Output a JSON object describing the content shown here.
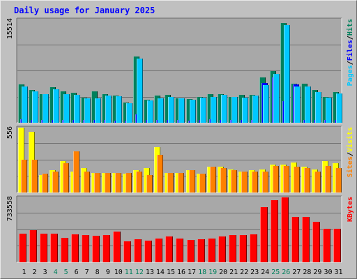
{
  "title": "Daily usage for January 2025",
  "colors": {
    "hits": "#00805c",
    "files": "#0000ff",
    "pages": "#00c8ff",
    "visits": "#ffff00",
    "sites": "#ff8000",
    "kbytes": "#ff0000",
    "weekend_label": "#00805c",
    "weekday_label": "#000000",
    "frame_bg": "#c0c0c0",
    "plot_bg": "#a8a8a8",
    "grid": "#707070"
  },
  "chart_data": [
    {
      "type": "bar",
      "panel": "top",
      "ymax_label": "15514",
      "ylim": [
        0,
        15514
      ],
      "grid": true,
      "legend_placement": "right",
      "legend": [
        "Pages",
        "Files",
        "Hits"
      ],
      "legend_separator": "/",
      "series": [
        {
          "name": "Hits",
          "values": [
            5770,
            4880,
            4340,
            5300,
            4670,
            4530,
            3750,
            4670,
            4260,
            4130,
            3030,
            9950,
            3450,
            4140,
            4170,
            3650,
            3610,
            3880,
            4340,
            4350,
            3920,
            4230,
            4230,
            6800,
            7770,
            15000,
            5840,
            5880,
            4900,
            3860,
            4620
          ]
        },
        {
          "name": "Files",
          "values": [
            560,
            430,
            400,
            460,
            450,
            420,
            370,
            370,
            400,
            360,
            270,
            1250,
            400,
            440,
            420,
            410,
            360,
            470,
            480,
            440,
            420,
            450,
            470,
            5960,
            6840,
            3290,
            5770,
            430,
            440,
            400,
            440
          ]
        },
        {
          "name": "Pages",
          "values": [
            5470,
            4670,
            4300,
            5020,
            4270,
            4160,
            3700,
            3650,
            4130,
            3960,
            2920,
            9650,
            3370,
            3680,
            3930,
            3640,
            3440,
            3780,
            3920,
            4210,
            3860,
            3790,
            4130,
            5640,
            7310,
            14700,
            5500,
            5480,
            4570,
            3780,
            4420
          ]
        }
      ]
    },
    {
      "type": "bar",
      "panel": "middle",
      "ymax_label": "556",
      "ylim": [
        0,
        556
      ],
      "grid": true,
      "legend_placement": "right",
      "legend": [
        "Sites",
        "Visits"
      ],
      "legend_separator": "/",
      "series": [
        {
          "name": "Visits",
          "values": [
            556,
            520,
            150,
            190,
            270,
            180,
            210,
            170,
            170,
            170,
            160,
            190,
            210,
            390,
            170,
            170,
            190,
            160,
            220,
            220,
            200,
            180,
            190,
            200,
            240,
            240,
            260,
            220,
            200,
            270,
            250
          ]
        },
        {
          "name": "Sites",
          "values": [
            280,
            280,
            160,
            180,
            250,
            350,
            180,
            170,
            170,
            170,
            170,
            180,
            150,
            320,
            170,
            170,
            190,
            160,
            220,
            210,
            190,
            180,
            180,
            180,
            230,
            230,
            220,
            210,
            180,
            230,
            210
          ]
        }
      ]
    },
    {
      "type": "bar",
      "panel": "bottom",
      "ymax_label": "733558",
      "ylim": [
        0,
        733558
      ],
      "grid": true,
      "legend_placement": "right",
      "legend": [
        "KBytes"
      ],
      "series": [
        {
          "name": "KBytes",
          "values": [
            320000,
            360000,
            325000,
            320000,
            275000,
            315000,
            305000,
            300000,
            305000,
            350000,
            240000,
            260000,
            245000,
            270000,
            290000,
            265000,
            255000,
            262000,
            270000,
            290000,
            305000,
            310000,
            315000,
            620000,
            705000,
            740000,
            515000,
            515000,
            460000,
            380000,
            375000
          ]
        }
      ]
    }
  ],
  "days": [
    "1",
    "2",
    "3",
    "4",
    "5",
    "6",
    "7",
    "8",
    "9",
    "10",
    "11",
    "12",
    "13",
    "14",
    "15",
    "16",
    "17",
    "18",
    "19",
    "20",
    "21",
    "22",
    "23",
    "24",
    "25",
    "26",
    "27",
    "28",
    "29",
    "30",
    "31"
  ],
  "weekend_days": [
    "4",
    "5",
    "11",
    "12",
    "18",
    "19",
    "25",
    "26"
  ]
}
